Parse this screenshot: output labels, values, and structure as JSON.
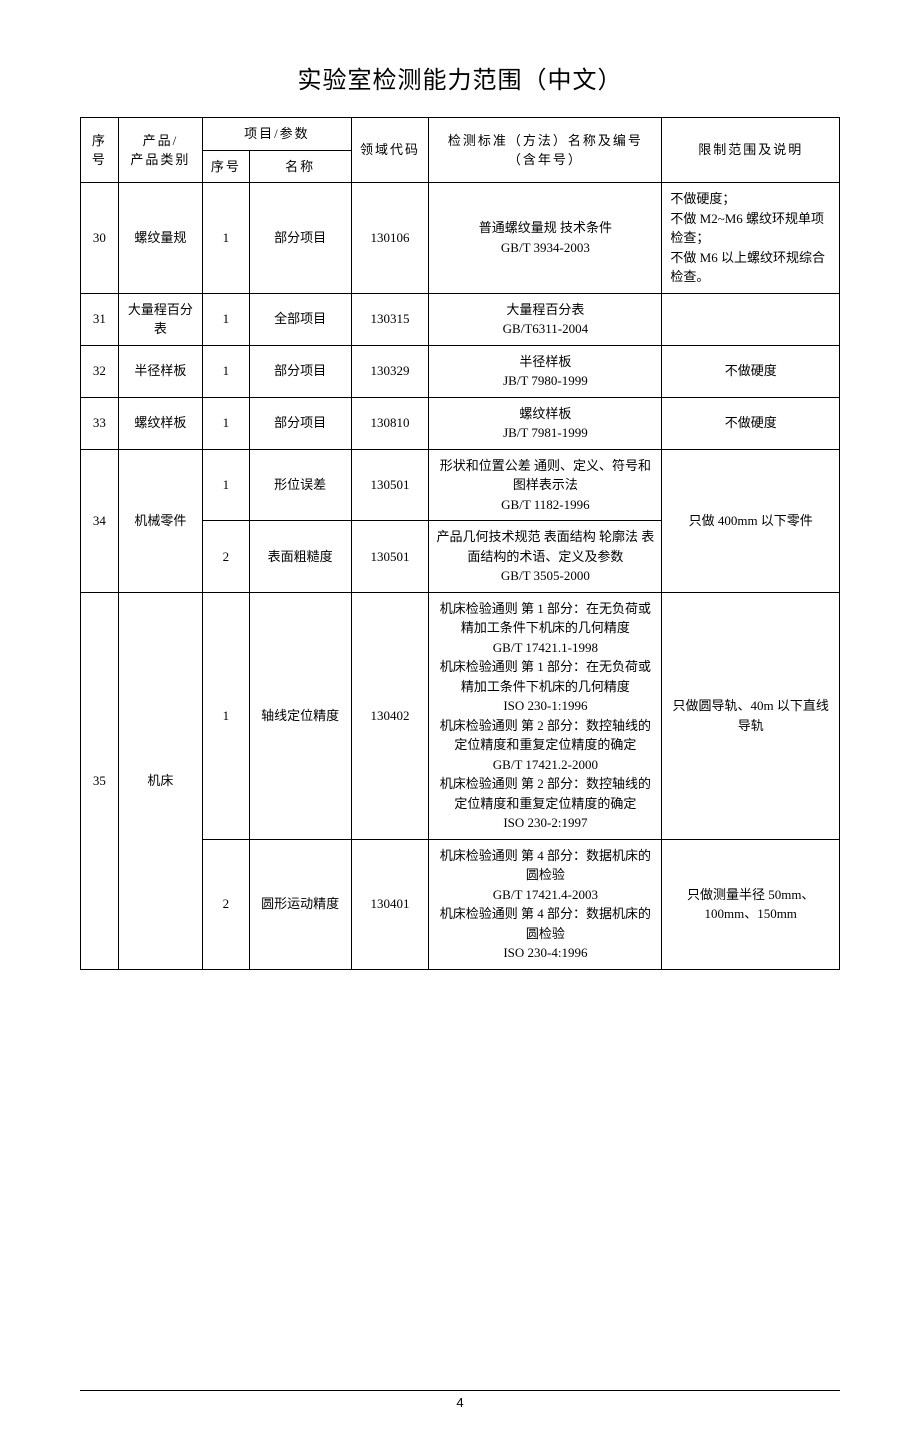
{
  "title": "实验室检测能力范围（中文）",
  "headers": {
    "seq": "序号",
    "product": "产品/\n产品类别",
    "param_group": "项目/参数",
    "param_seq": "序号",
    "param_name": "名称",
    "domain": "领域代码",
    "standard": "检测标准（方法）名称及编号（含年号）",
    "limit": "限制范围及说明"
  },
  "rows": [
    {
      "seq": "30",
      "product": "螺纹量规",
      "pseq": "1",
      "pname": "部分项目",
      "domain": "130106",
      "std": "普通螺纹量规 技术条件\nGB/T 3934-2003",
      "limit": "不做硬度；\n不做 M2~M6 螺纹环规单项检查；\n不做 M6 以上螺纹环规综合检查。",
      "limit_align": "left"
    },
    {
      "seq": "31",
      "product": "大量程百分表",
      "pseq": "1",
      "pname": "全部项目",
      "domain": "130315",
      "std": "大量程百分表\nGB/T6311-2004",
      "limit": ""
    },
    {
      "seq": "32",
      "product": "半径样板",
      "pseq": "1",
      "pname": "部分项目",
      "domain": "130329",
      "std": "半径样板\nJB/T 7980-1999",
      "limit": "不做硬度"
    },
    {
      "seq": "33",
      "product": "螺纹样板",
      "pseq": "1",
      "pname": "部分项目",
      "domain": "130810",
      "std": "螺纹样板\nJB/T 7981-1999",
      "limit": "不做硬度"
    },
    {
      "seq": "34",
      "product": "机械零件",
      "rowspan_sp": 2,
      "sub": [
        {
          "pseq": "1",
          "pname": "形位误差",
          "domain": "130501",
          "std": "形状和位置公差 通则、定义、符号和图样表示法\nGB/T 1182-1996"
        },
        {
          "pseq": "2",
          "pname": "表面粗糙度",
          "domain": "130501",
          "std": "产品几何技术规范 表面结构 轮廓法 表面结构的术语、定义及参数\nGB/T 3505-2000"
        }
      ],
      "limit": "只做 400mm 以下零件"
    },
    {
      "seq": "35",
      "product": "机床",
      "rowspan_sp": 2,
      "sub": [
        {
          "pseq": "1",
          "pname": "轴线定位精度",
          "domain": "130402",
          "std": "机床检验通则 第 1 部分：在无负荷或精加工条件下机床的几何精度\nGB/T 17421.1-1998\n机床检验通则 第 1 部分：在无负荷或精加工条件下机床的几何精度\nISO 230-1:1996\n机床检验通则 第 2 部分：数控轴线的定位精度和重复定位精度的确定\nGB/T 17421.2-2000\n机床检验通则 第 2 部分：数控轴线的定位精度和重复定位精度的确定\nISO 230-2:1997",
          "limit": "只做圆导轨、40m 以下直线导轨"
        },
        {
          "pseq": "2",
          "pname": "圆形运动精度",
          "domain": "130401",
          "std": "机床检验通则 第 4 部分：数据机床的圆检验\nGB/T 17421.4-2003\n机床检验通则 第 4 部分：数据机床的圆检验\nISO 230-4:1996",
          "limit": "只做测量半径 50mm、100mm、150mm"
        }
      ]
    }
  ],
  "page_number": "4"
}
